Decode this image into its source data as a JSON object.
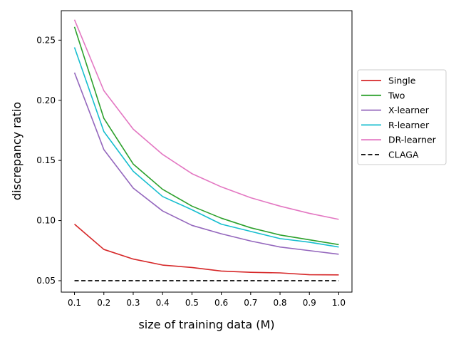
{
  "chart_data": {
    "type": "line",
    "title": "",
    "xlabel": "size of training data (M)",
    "ylabel": "discrepancy ratio",
    "x": [
      0.1,
      0.2,
      0.3,
      0.4,
      0.5,
      0.6,
      0.7,
      0.8,
      0.9,
      1.0
    ],
    "xticks": [
      "0.1",
      "0.2",
      "0.3",
      "0.4",
      "0.5",
      "0.6",
      "0.7",
      "0.8",
      "0.9",
      "1.0"
    ],
    "yticks": [
      "0.05",
      "0.10",
      "0.15",
      "0.20",
      "0.25"
    ],
    "xlim": [
      0.055,
      1.045
    ],
    "ylim": [
      0.0405,
      0.2745
    ],
    "grid": false,
    "legend_position": "outside-right",
    "series": [
      {
        "name": "Single",
        "color": "#d62728",
        "dash": "solid",
        "values": [
          0.097,
          0.076,
          0.068,
          0.063,
          0.061,
          0.058,
          0.057,
          0.0565,
          0.055,
          0.0548
        ]
      },
      {
        "name": "Two",
        "color": "#2ca02c",
        "dash": "solid",
        "values": [
          0.261,
          0.185,
          0.147,
          0.126,
          0.112,
          0.102,
          0.094,
          0.088,
          0.084,
          0.08
        ]
      },
      {
        "name": "X-learner",
        "color": "#9467bd",
        "dash": "solid",
        "values": [
          0.223,
          0.159,
          0.127,
          0.108,
          0.096,
          0.089,
          0.083,
          0.078,
          0.075,
          0.072
        ]
      },
      {
        "name": "R-learner",
        "color": "#17becf",
        "dash": "solid",
        "values": [
          0.244,
          0.174,
          0.141,
          0.12,
          0.109,
          0.097,
          0.091,
          0.085,
          0.082,
          0.078
        ]
      },
      {
        "name": "DR-learner",
        "color": "#e377c2",
        "dash": "solid",
        "values": [
          0.267,
          0.208,
          0.176,
          0.155,
          0.139,
          0.128,
          0.119,
          0.112,
          0.106,
          0.101
        ]
      },
      {
        "name": "CLAGA",
        "color": "#000000",
        "dash": "dashed",
        "values": [
          0.05,
          0.05,
          0.05,
          0.05,
          0.05,
          0.05,
          0.05,
          0.05,
          0.05,
          0.05
        ]
      }
    ]
  }
}
